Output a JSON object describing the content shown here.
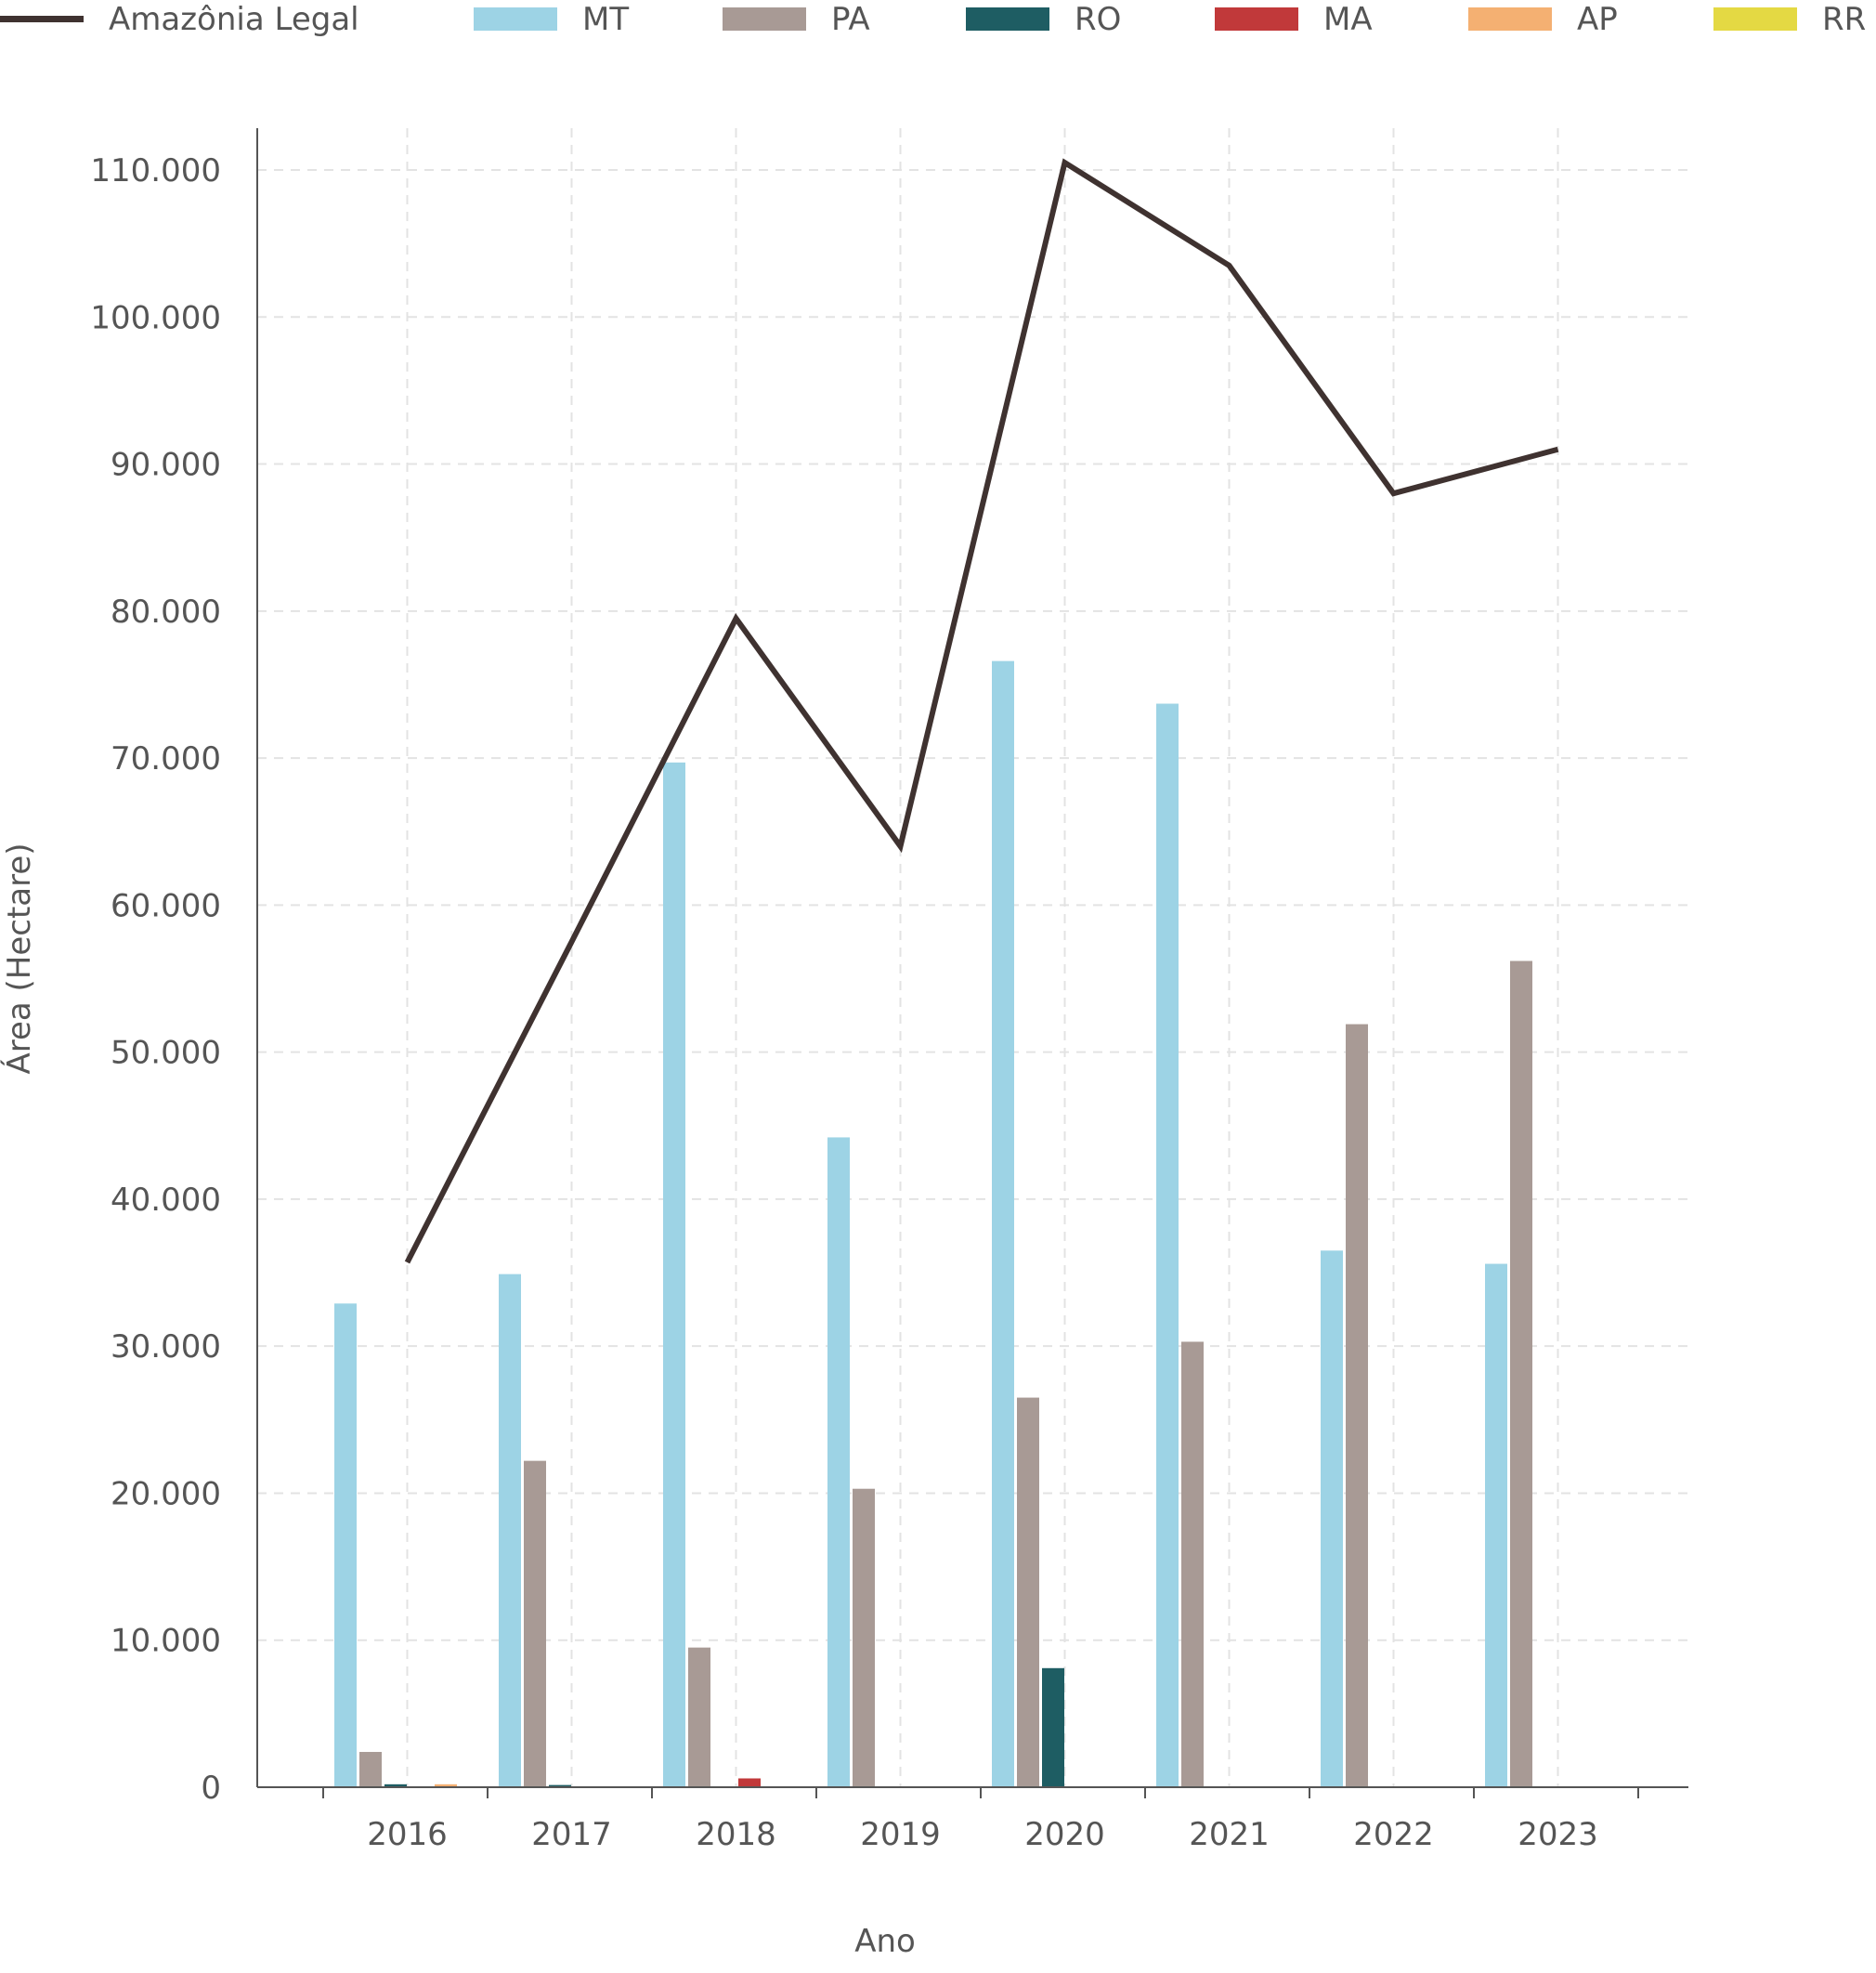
{
  "chart_data": {
    "type": "bar",
    "title": "",
    "xlabel": "Ano",
    "ylabel": "Área (Hectare)",
    "categories": [
      "2016",
      "2017",
      "2018",
      "2019",
      "2020",
      "2021",
      "2022",
      "2023"
    ],
    "ylim": [
      0,
      113000
    ],
    "yticks": [
      0,
      10000,
      20000,
      30000,
      40000,
      50000,
      60000,
      70000,
      80000,
      90000,
      100000,
      110000
    ],
    "ytick_labels": [
      "0",
      "10.000",
      "20.000",
      "30.000",
      "40.000",
      "50.000",
      "60.000",
      "70.000",
      "80.000",
      "90.000",
      "100.000",
      "110.000"
    ],
    "grid": true,
    "legend_position": "top",
    "line_series": {
      "name": "Amazônia Legal",
      "color": "#3f3230",
      "values": [
        35700,
        57500,
        79500,
        64000,
        110500,
        103500,
        88000,
        91000
      ]
    },
    "series": [
      {
        "name": "MT",
        "color": "#9dd3e5",
        "values": [
          32900,
          34900,
          69700,
          44200,
          76600,
          73700,
          36500,
          35600
        ]
      },
      {
        "name": "PA",
        "color": "#a89a95",
        "values": [
          2400,
          22200,
          9500,
          20300,
          26500,
          30300,
          51900,
          56200
        ]
      },
      {
        "name": "RO",
        "color": "#1e5d63",
        "values": [
          200,
          150,
          0,
          0,
          8100,
          0,
          0,
          0
        ]
      },
      {
        "name": "MA",
        "color": "#c1393a",
        "values": [
          0,
          0,
          600,
          0,
          0,
          0,
          0,
          0
        ]
      },
      {
        "name": "AP",
        "color": "#f4b072",
        "values": [
          200,
          0,
          0,
          0,
          0,
          0,
          0,
          0
        ]
      },
      {
        "name": "RR",
        "color": "#e4d943",
        "values": [
          0,
          0,
          0,
          0,
          0,
          0,
          0,
          0
        ]
      }
    ]
  }
}
